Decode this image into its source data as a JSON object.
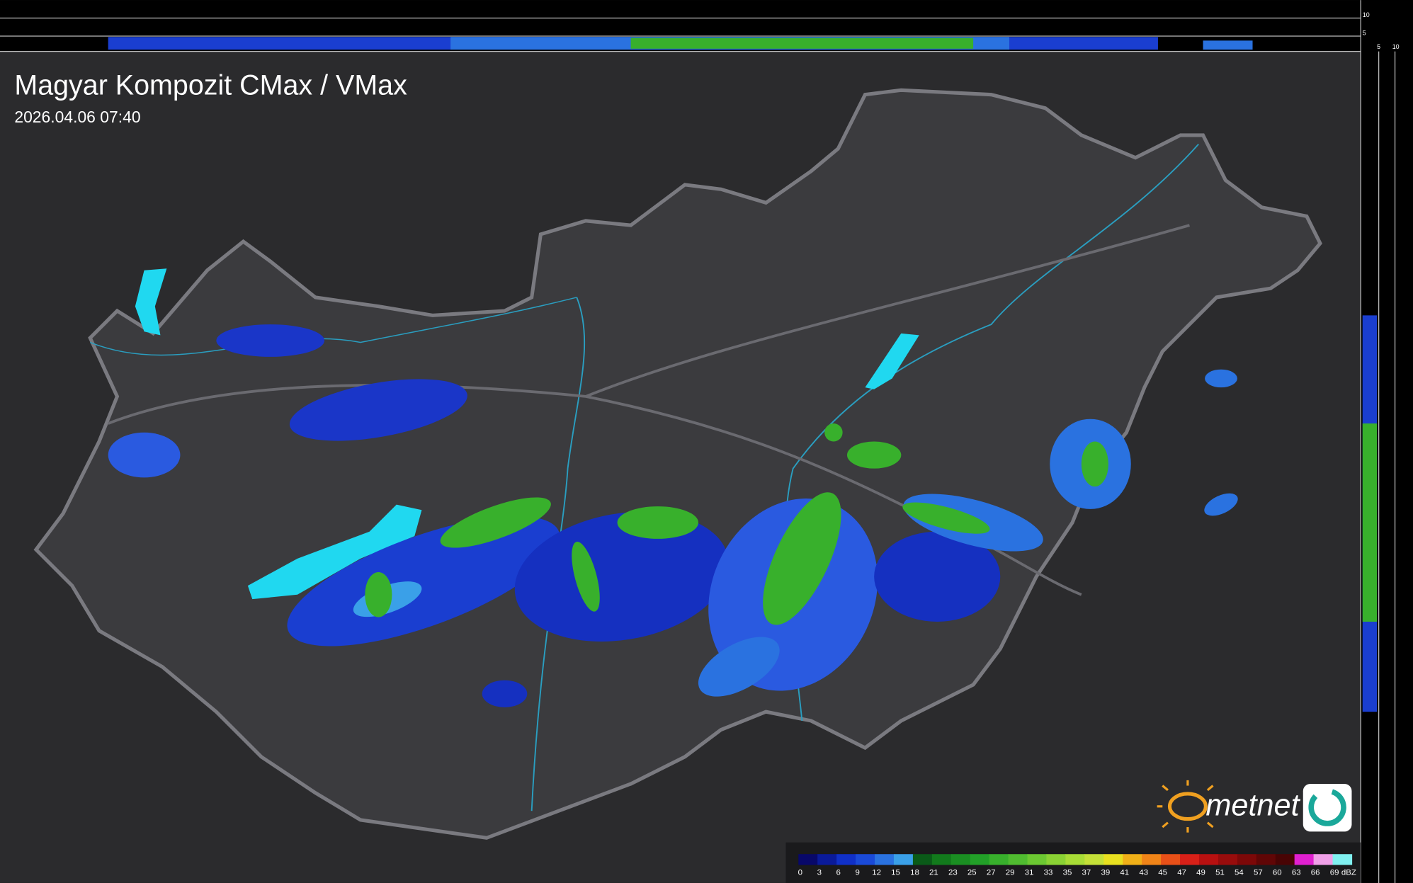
{
  "header": {
    "title": "Magyar Kompozit CMax / VMax",
    "timestamp": "2026.04.06 07:40"
  },
  "profile": {
    "top_labels": [
      "10",
      "5"
    ],
    "side_labels": [
      "5",
      "10"
    ]
  },
  "logo": {
    "text": "metnet"
  },
  "legend": {
    "unit": "dBZ",
    "ticks": [
      0,
      3,
      6,
      9,
      12,
      15,
      18,
      21,
      23,
      25,
      27,
      29,
      31,
      33,
      35,
      37,
      39,
      41,
      43,
      45,
      47,
      49,
      51,
      54,
      57,
      60,
      63,
      66,
      69
    ],
    "colors": [
      "#08086a",
      "#0a1a9a",
      "#1030c8",
      "#1a4ad8",
      "#2a72e0",
      "#3aa0e8",
      "#0a5a18",
      "#127a1c",
      "#1a8e22",
      "#22a028",
      "#38b02c",
      "#50bc30",
      "#6cc832",
      "#8ad234",
      "#a8dc36",
      "#c4e038",
      "#e8e020",
      "#f0b018",
      "#f08418",
      "#e85018",
      "#d82018",
      "#b81010",
      "#980c0c",
      "#7c0808",
      "#600606",
      "#480404",
      "#e020d0",
      "#f0a0e8",
      "#80f0f0"
    ]
  }
}
